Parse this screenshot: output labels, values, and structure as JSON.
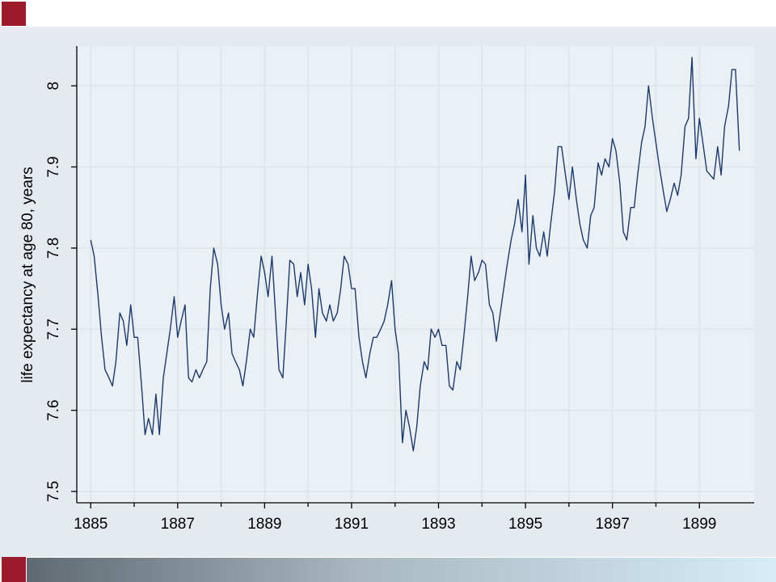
{
  "chart_data": {
    "type": "line",
    "ylabel": "life expectancy at age 80, years",
    "xlim": [
      1884.68,
      1900.26
    ],
    "ylim": [
      7.486,
      8.049
    ],
    "xticks": [
      1885,
      1887,
      1889,
      1891,
      1893,
      1895,
      1897,
      1899
    ],
    "xminorticks": [
      1886,
      1888,
      1890,
      1892,
      1894,
      1896,
      1898
    ],
    "yticks": [
      7.5,
      7.6,
      7.7,
      7.8,
      7.9,
      8
    ],
    "grid": true,
    "series": [
      {
        "color": "#1a3a73",
        "x": [
          1885.0,
          1885.08,
          1885.17,
          1885.25,
          1885.33,
          1885.42,
          1885.5,
          1885.58,
          1885.67,
          1885.75,
          1885.83,
          1885.92,
          1886.0,
          1886.08,
          1886.17,
          1886.25,
          1886.33,
          1886.42,
          1886.5,
          1886.58,
          1886.67,
          1886.75,
          1886.83,
          1886.92,
          1887.0,
          1887.08,
          1887.17,
          1887.25,
          1887.33,
          1887.42,
          1887.5,
          1887.58,
          1887.67,
          1887.75,
          1887.83,
          1887.92,
          1888.0,
          1888.08,
          1888.17,
          1888.25,
          1888.33,
          1888.42,
          1888.5,
          1888.58,
          1888.67,
          1888.75,
          1888.83,
          1888.92,
          1889.0,
          1889.08,
          1889.17,
          1889.25,
          1889.33,
          1889.42,
          1889.5,
          1889.58,
          1889.67,
          1889.75,
          1889.83,
          1889.92,
          1890.0,
          1890.08,
          1890.17,
          1890.25,
          1890.33,
          1890.42,
          1890.5,
          1890.58,
          1890.67,
          1890.75,
          1890.83,
          1890.92,
          1891.0,
          1891.08,
          1891.17,
          1891.25,
          1891.33,
          1891.42,
          1891.5,
          1891.58,
          1891.67,
          1891.75,
          1891.83,
          1891.92,
          1892.0,
          1892.08,
          1892.17,
          1892.25,
          1892.33,
          1892.42,
          1892.5,
          1892.58,
          1892.67,
          1892.75,
          1892.83,
          1892.92,
          1893.0,
          1893.08,
          1893.17,
          1893.25,
          1893.33,
          1893.42,
          1893.5,
          1893.58,
          1893.67,
          1893.75,
          1893.83,
          1893.92,
          1894.0,
          1894.08,
          1894.17,
          1894.25,
          1894.33,
          1894.42,
          1894.5,
          1894.58,
          1894.67,
          1894.75,
          1894.83,
          1894.92,
          1895.0,
          1895.08,
          1895.17,
          1895.25,
          1895.33,
          1895.42,
          1895.5,
          1895.58,
          1895.67,
          1895.75,
          1895.83,
          1895.92,
          1896.0,
          1896.08,
          1896.17,
          1896.25,
          1896.33,
          1896.42,
          1896.5,
          1896.58,
          1896.67,
          1896.75,
          1896.83,
          1896.92,
          1897.0,
          1897.08,
          1897.17,
          1897.25,
          1897.33,
          1897.42,
          1897.5,
          1897.58,
          1897.67,
          1897.75,
          1897.83,
          1897.92,
          1898.0,
          1898.08,
          1898.17,
          1898.25,
          1898.33,
          1898.42,
          1898.5,
          1898.58,
          1898.67,
          1898.75,
          1898.83,
          1898.92,
          1899.0,
          1899.08,
          1899.17,
          1899.25,
          1899.33,
          1899.42,
          1899.5,
          1899.58,
          1899.67,
          1899.75,
          1899.83,
          1899.92
        ],
        "values": [
          7.81,
          7.79,
          7.74,
          7.69,
          7.65,
          7.64,
          7.63,
          7.66,
          7.72,
          7.71,
          7.68,
          7.73,
          7.69,
          7.69,
          7.63,
          7.57,
          7.59,
          7.57,
          7.62,
          7.57,
          7.64,
          7.67,
          7.7,
          7.74,
          7.69,
          7.71,
          7.73,
          7.64,
          7.635,
          7.65,
          7.64,
          7.65,
          7.66,
          7.75,
          7.8,
          7.78,
          7.73,
          7.7,
          7.72,
          7.67,
          7.66,
          7.65,
          7.63,
          7.66,
          7.7,
          7.69,
          7.74,
          7.79,
          7.77,
          7.74,
          7.79,
          7.72,
          7.65,
          7.64,
          7.71,
          7.785,
          7.78,
          7.74,
          7.77,
          7.73,
          7.78,
          7.75,
          7.69,
          7.75,
          7.72,
          7.71,
          7.73,
          7.71,
          7.72,
          7.75,
          7.79,
          7.78,
          7.75,
          7.75,
          7.69,
          7.66,
          7.64,
          7.67,
          7.69,
          7.69,
          7.7,
          7.71,
          7.73,
          7.76,
          7.7,
          7.67,
          7.56,
          7.6,
          7.58,
          7.55,
          7.58,
          7.63,
          7.66,
          7.65,
          7.7,
          7.69,
          7.7,
          7.68,
          7.68,
          7.63,
          7.625,
          7.66,
          7.65,
          7.69,
          7.74,
          7.79,
          7.76,
          7.77,
          7.785,
          7.78,
          7.73,
          7.72,
          7.685,
          7.72,
          7.75,
          7.78,
          7.81,
          7.83,
          7.86,
          7.82,
          7.89,
          7.78,
          7.84,
          7.8,
          7.79,
          7.82,
          7.79,
          7.83,
          7.87,
          7.925,
          7.925,
          7.89,
          7.86,
          7.9,
          7.86,
          7.83,
          7.81,
          7.8,
          7.84,
          7.85,
          7.905,
          7.89,
          7.91,
          7.9,
          7.935,
          7.92,
          7.88,
          7.82,
          7.81,
          7.85,
          7.85,
          7.89,
          7.93,
          7.95,
          8.0,
          7.96,
          7.93,
          7.9,
          7.87,
          7.845,
          7.86,
          7.88,
          7.865,
          7.89,
          7.95,
          7.96,
          8.035,
          7.91,
          7.96,
          7.93,
          7.895,
          7.89,
          7.885,
          7.925,
          7.89,
          7.95,
          7.975,
          8.02,
          8.02,
          7.92
        ]
      }
    ]
  }
}
